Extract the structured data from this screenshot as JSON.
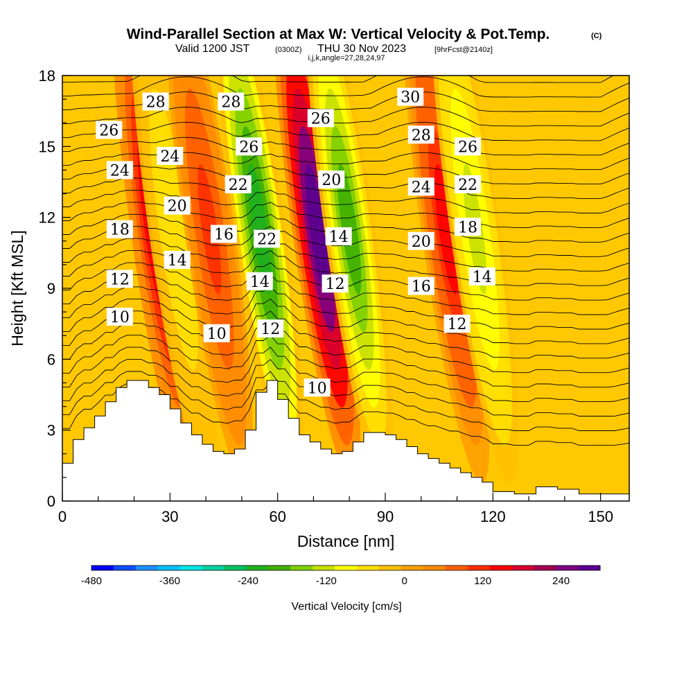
{
  "header": {
    "title": "Wind-Parallel Section at Max W: Vertical Velocity & Pot.Temp.",
    "copyright": "(C)",
    "valid_prefix": "Valid 1200 JST",
    "valid_utc": "(0300Z)",
    "valid_date": "THU 30 Nov 2023",
    "forecast": "[9hrFcst@2140z]",
    "params": "i,j,k,angle=27,28,24,97"
  },
  "chart_data": {
    "type": "heatmap",
    "x_axis": {
      "label": "Distance [nm]",
      "range": [
        0,
        158
      ],
      "ticks": [
        0,
        30,
        60,
        90,
        120,
        150
      ],
      "tick_labels": [
        "0",
        "30",
        "60",
        "90",
        "120",
        "150"
      ]
    },
    "y_axis": {
      "label": "Height [Kft MSL]",
      "range": [
        0,
        18
      ],
      "ticks": [
        0,
        3,
        6,
        9,
        12,
        15,
        18
      ],
      "tick_labels": [
        "0",
        "3",
        "6",
        "9",
        "12",
        "15",
        "18"
      ]
    },
    "colorbar": {
      "label": "Vertical Velocity [cm/s]",
      "range": [
        -480,
        300
      ],
      "tick_values": [
        -480,
        -360,
        -240,
        -120,
        0,
        120,
        240
      ],
      "tick_labels": [
        "-480",
        "-360",
        "-240",
        "-120",
        "0",
        "120",
        "240"
      ],
      "colors": [
        "#0000ff",
        "#0f4dff",
        "#1e90ff",
        "#00bfff",
        "#00e5e5",
        "#00d2a0",
        "#00c060",
        "#20b020",
        "#40b000",
        "#80d000",
        "#c8e000",
        "#ffff00",
        "#ffe000",
        "#ffc000",
        "#ffa000",
        "#ff8c00",
        "#ff6000",
        "#ff3000",
        "#ff0000",
        "#d80030",
        "#a00050",
        "#800080",
        "#5a0090"
      ]
    },
    "vertical_velocity_bands": [
      {
        "name": "updraft",
        "x": 26,
        "peak_cm_s": 180
      },
      {
        "name": "downdraft",
        "x": 31,
        "peak_cm_s": -60
      },
      {
        "name": "updraft",
        "x": 41,
        "peak_cm_s": 110
      },
      {
        "name": "downdraft",
        "x": 55,
        "peak_cm_s": -230
      },
      {
        "name": "updraft",
        "x": 71,
        "peak_cm_s": 280
      },
      {
        "name": "downdraft",
        "x": 80,
        "peak_cm_s": -200
      },
      {
        "name": "updraft",
        "x": 107,
        "peak_cm_s": 140
      },
      {
        "name": "downdraft",
        "x": 115,
        "peak_cm_s": -120
      }
    ],
    "terrain": {
      "x": [
        0,
        3,
        6,
        9,
        12,
        15,
        18,
        21,
        24,
        27,
        30,
        33,
        36,
        39,
        42,
        45,
        48,
        51,
        54,
        57,
        60,
        63,
        66,
        69,
        72,
        75,
        78,
        81,
        84,
        87,
        90,
        93,
        96,
        99,
        102,
        105,
        108,
        111,
        114,
        117,
        120,
        126,
        132,
        138,
        144,
        150,
        154,
        158
      ],
      "height_kft": [
        1.6,
        2.6,
        3.1,
        3.6,
        4.2,
        4.8,
        5.1,
        5.1,
        4.8,
        4.5,
        3.9,
        3.3,
        2.8,
        2.4,
        2.1,
        2.0,
        2.2,
        3.0,
        4.6,
        5.1,
        4.3,
        3.5,
        2.8,
        2.5,
        2.2,
        2.0,
        2.1,
        2.5,
        2.9,
        2.9,
        2.8,
        2.6,
        2.3,
        2.0,
        1.8,
        1.6,
        1.4,
        1.2,
        1.0,
        0.8,
        0.4,
        0.3,
        0.6,
        0.5,
        0.3,
        0.3,
        0.3,
        0.3
      ]
    },
    "potential_temperature_contour_labels": [
      {
        "text": "28",
        "x": 26,
        "y": 16.9
      },
      {
        "text": "26",
        "x": 13,
        "y": 15.7
      },
      {
        "text": "24",
        "x": 16,
        "y": 14.0
      },
      {
        "text": "18",
        "x": 16,
        "y": 11.5
      },
      {
        "text": "12",
        "x": 16,
        "y": 9.4
      },
      {
        "text": "10",
        "x": 16,
        "y": 7.8
      },
      {
        "text": "24",
        "x": 30,
        "y": 14.6
      },
      {
        "text": "20",
        "x": 32,
        "y": 12.5
      },
      {
        "text": "14",
        "x": 32,
        "y": 10.2
      },
      {
        "text": "10",
        "x": 43,
        "y": 7.1
      },
      {
        "text": "28",
        "x": 47,
        "y": 16.9
      },
      {
        "text": "26",
        "x": 52,
        "y": 15.0
      },
      {
        "text": "22",
        "x": 49,
        "y": 13.4
      },
      {
        "text": "16",
        "x": 45,
        "y": 11.3
      },
      {
        "text": "22",
        "x": 57,
        "y": 11.1
      },
      {
        "text": "14",
        "x": 55,
        "y": 9.3
      },
      {
        "text": "12",
        "x": 58,
        "y": 7.3
      },
      {
        "text": "26",
        "x": 72,
        "y": 16.2
      },
      {
        "text": "20",
        "x": 75,
        "y": 13.6
      },
      {
        "text": "14",
        "x": 77,
        "y": 11.2
      },
      {
        "text": "12",
        "x": 76,
        "y": 9.2
      },
      {
        "text": "10",
        "x": 71,
        "y": 4.8
      },
      {
        "text": "30",
        "x": 97,
        "y": 17.1
      },
      {
        "text": "28",
        "x": 100,
        "y": 15.5
      },
      {
        "text": "24",
        "x": 100,
        "y": 13.3
      },
      {
        "text": "20",
        "x": 100,
        "y": 11.0
      },
      {
        "text": "16",
        "x": 100,
        "y": 9.1
      },
      {
        "text": "26",
        "x": 113,
        "y": 15.0
      },
      {
        "text": "22",
        "x": 113,
        "y": 13.4
      },
      {
        "text": "18",
        "x": 113,
        "y": 11.6
      },
      {
        "text": "14",
        "x": 117,
        "y": 9.5
      },
      {
        "text": "12",
        "x": 110,
        "y": 7.5
      }
    ]
  }
}
